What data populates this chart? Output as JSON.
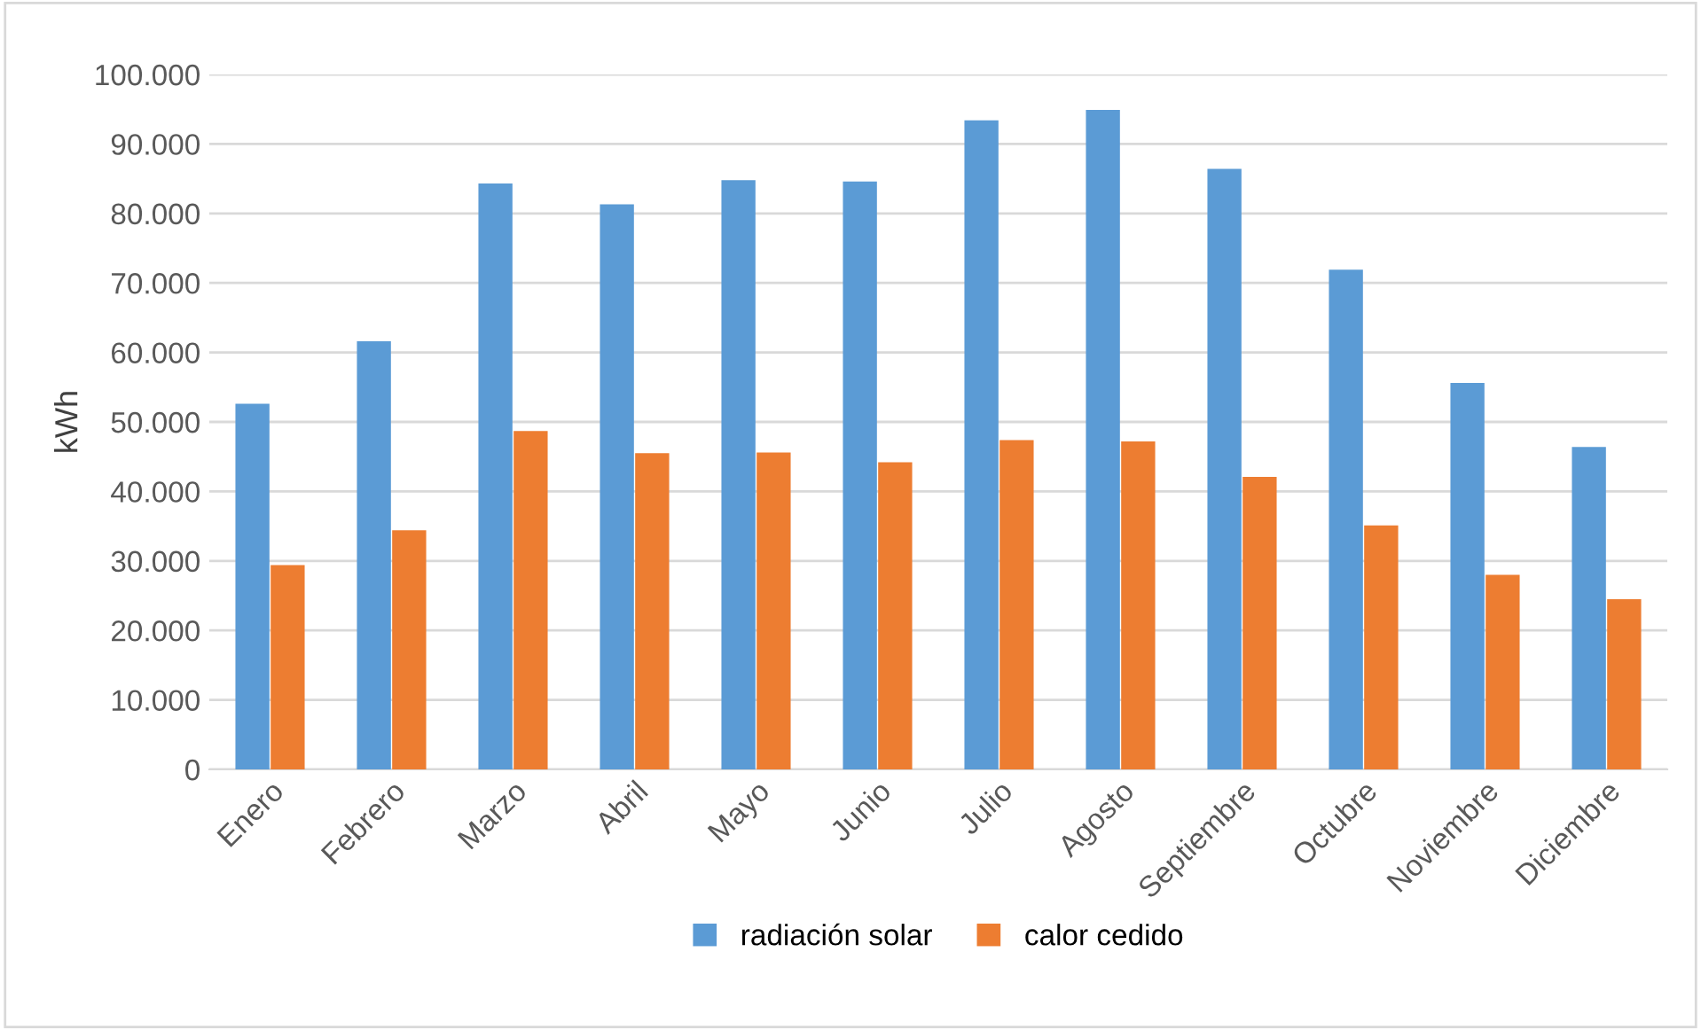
{
  "chart_data": {
    "type": "bar",
    "ylabel": "kWh",
    "categories": [
      "Enero",
      "Febrero",
      "Marzo",
      "Abril",
      "Mayo",
      "Junio",
      "Julio",
      "Agosto",
      "Septiembre",
      "Octubre",
      "Noviembre",
      "Diciembre"
    ],
    "series": [
      {
        "name": "radiación solar",
        "color": "#5b9bd5",
        "values": [
          52600,
          61600,
          84300,
          81300,
          84800,
          84600,
          93400,
          94900,
          86400,
          71900,
          55600,
          46400
        ]
      },
      {
        "name": "calor cedido",
        "color": "#ed7d31",
        "values": [
          29400,
          34400,
          48700,
          45500,
          45600,
          44200,
          47400,
          47200,
          42100,
          35100,
          28000,
          24500
        ]
      }
    ],
    "ylim": [
      0,
      100000
    ],
    "yticks": [
      {
        "value": 0,
        "label": "0"
      },
      {
        "value": 10000,
        "label": "10.000"
      },
      {
        "value": 20000,
        "label": "20.000"
      },
      {
        "value": 30000,
        "label": "30.000"
      },
      {
        "value": 40000,
        "label": "40.000"
      },
      {
        "value": 50000,
        "label": "50.000"
      },
      {
        "value": 60000,
        "label": "60.000"
      },
      {
        "value": 70000,
        "label": "70.000"
      },
      {
        "value": 80000,
        "label": "80.000"
      },
      {
        "value": 90000,
        "label": "90.000"
      },
      {
        "value": 100000,
        "label": "100.000"
      }
    ],
    "grid": "y",
    "legend": "bottom"
  }
}
